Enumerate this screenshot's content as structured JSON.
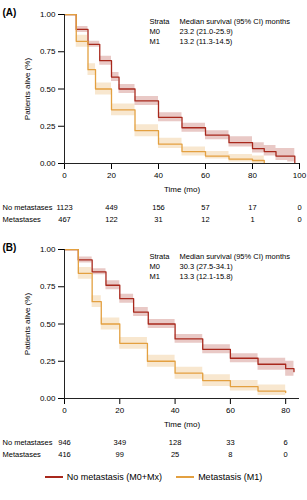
{
  "chart_data": [
    {
      "type": "line",
      "title": "(A)",
      "xlabel": "Time (mo)",
      "ylabel": "Patients alive (%)",
      "xlim": [
        0,
        100
      ],
      "xticks": [
        0,
        20,
        40,
        60,
        80,
        100
      ],
      "ylim": [
        0,
        1
      ],
      "yticks": [
        {
          "value": 0,
          "label": "0.00"
        },
        {
          "value": 0.25,
          "label": "0.25"
        },
        {
          "value": 0.5,
          "label": "0.50"
        },
        {
          "value": 0.75,
          "label": "0.75"
        },
        {
          "value": 1,
          "label": "1.00"
        }
      ],
      "legend": "bottom",
      "series": [
        {
          "name": "No metastasis (M0+Mx)",
          "color": "#a8281c",
          "line_style": "step",
          "x": [
            0,
            5,
            10,
            15,
            20,
            23.2,
            30,
            40,
            50,
            60,
            70,
            80,
            85,
            90,
            95,
            98
          ],
          "values": [
            1,
            0.9,
            0.8,
            0.69,
            0.58,
            0.5,
            0.42,
            0.31,
            0.24,
            0.19,
            0.14,
            0.1,
            0.08,
            0.05,
            0.05,
            0
          ],
          "ci_lower": [
            1,
            0.88,
            0.78,
            0.66,
            0.55,
            0.47,
            0.39,
            0.28,
            0.21,
            0.16,
            0.11,
            0.07,
            0.05,
            0.02,
            0.01,
            0
          ],
          "ci_upper": [
            1,
            0.92,
            0.82,
            0.72,
            0.61,
            0.53,
            0.45,
            0.34,
            0.27,
            0.22,
            0.18,
            0.14,
            0.12,
            0.1,
            0.1,
            0.1
          ]
        },
        {
          "name": "Metastasis (M1)",
          "color": "#e3a040",
          "line_style": "step",
          "x": [
            0,
            5,
            10,
            13.2,
            20,
            30,
            40,
            50,
            60,
            70,
            80,
            85
          ],
          "values": [
            1,
            0.82,
            0.63,
            0.5,
            0.36,
            0.22,
            0.13,
            0.08,
            0.05,
            0.03,
            0.02,
            0
          ],
          "ci_lower": [
            1,
            0.78,
            0.59,
            0.46,
            0.32,
            0.18,
            0.1,
            0.05,
            0.03,
            0.01,
            0,
            0
          ],
          "ci_upper": [
            1,
            0.86,
            0.67,
            0.54,
            0.4,
            0.26,
            0.17,
            0.11,
            0.08,
            0.06,
            0.05,
            0.05
          ]
        }
      ],
      "annotation": {
        "header": [
          "Strata",
          "Median survival (95% CI) months"
        ],
        "rows": [
          [
            "M0",
            "23.2 (21.0-25.9)"
          ],
          [
            "M1",
            "13.2 (11.3-14.5)"
          ]
        ]
      },
      "risk_table": {
        "x": [
          0,
          20,
          40,
          60,
          80,
          100
        ],
        "rows": [
          {
            "name": "No metastases",
            "values": [
              1123,
              449,
              156,
              57,
              17,
              0
            ]
          },
          {
            "name": "Metastases",
            "values": [
              467,
              122,
              31,
              12,
              1,
              0
            ]
          }
        ]
      }
    },
    {
      "type": "line",
      "title": "(B)",
      "xlabel": "Time (mo)",
      "ylabel": "Patients alive (%)",
      "xlim": [
        0,
        85
      ],
      "xticks": [
        0,
        20,
        40,
        60,
        80
      ],
      "ylim": [
        0,
        1
      ],
      "yticks": [
        {
          "value": 0,
          "label": "0.00"
        },
        {
          "value": 0.25,
          "label": "0.25"
        },
        {
          "value": 0.5,
          "label": "0.50"
        },
        {
          "value": 0.75,
          "label": "0.75"
        },
        {
          "value": 1,
          "label": "1.00"
        }
      ],
      "legend": "bottom",
      "series": [
        {
          "name": "No metastasis (M0+Mx)",
          "color": "#a8281c",
          "line_style": "step",
          "x": [
            0,
            5,
            10,
            15,
            20,
            25,
            30.3,
            40,
            50,
            60,
            70,
            80,
            83
          ],
          "values": [
            1,
            0.93,
            0.85,
            0.76,
            0.67,
            0.58,
            0.5,
            0.4,
            0.33,
            0.27,
            0.23,
            0.2,
            0.18
          ],
          "ci_lower": [
            1,
            0.91,
            0.83,
            0.73,
            0.64,
            0.55,
            0.47,
            0.37,
            0.3,
            0.24,
            0.19,
            0.15,
            0.13
          ],
          "ci_upper": [
            1,
            0.95,
            0.87,
            0.79,
            0.7,
            0.61,
            0.53,
            0.43,
            0.36,
            0.3,
            0.27,
            0.25,
            0.24
          ]
        },
        {
          "name": "Metastasis (M1)",
          "color": "#e3a040",
          "line_style": "step",
          "x": [
            0,
            5,
            10,
            13.3,
            20,
            30,
            40,
            50,
            60,
            70,
            80
          ],
          "values": [
            1,
            0.84,
            0.65,
            0.5,
            0.37,
            0.25,
            0.17,
            0.12,
            0.08,
            0.05,
            0.04
          ],
          "ci_lower": [
            1,
            0.8,
            0.61,
            0.46,
            0.33,
            0.21,
            0.13,
            0.08,
            0.05,
            0.02,
            0.01
          ],
          "ci_upper": [
            1,
            0.88,
            0.69,
            0.54,
            0.41,
            0.29,
            0.21,
            0.16,
            0.12,
            0.09,
            0.08
          ]
        }
      ],
      "annotation": {
        "header": [
          "Strata",
          "Median survival (95% CI) months"
        ],
        "rows": [
          [
            "M0",
            "30.3 (27.5-34.1)"
          ],
          [
            "M1",
            "13.3 (12.1-15.8)"
          ]
        ]
      },
      "risk_table": {
        "x": [
          0,
          20,
          40,
          60,
          80
        ],
        "rows": [
          {
            "name": "No metastases",
            "values": [
              946,
              349,
              128,
              33,
              6
            ]
          },
          {
            "name": "Metastases",
            "values": [
              416,
              99,
              25,
              8,
              0
            ]
          }
        ]
      }
    }
  ]
}
